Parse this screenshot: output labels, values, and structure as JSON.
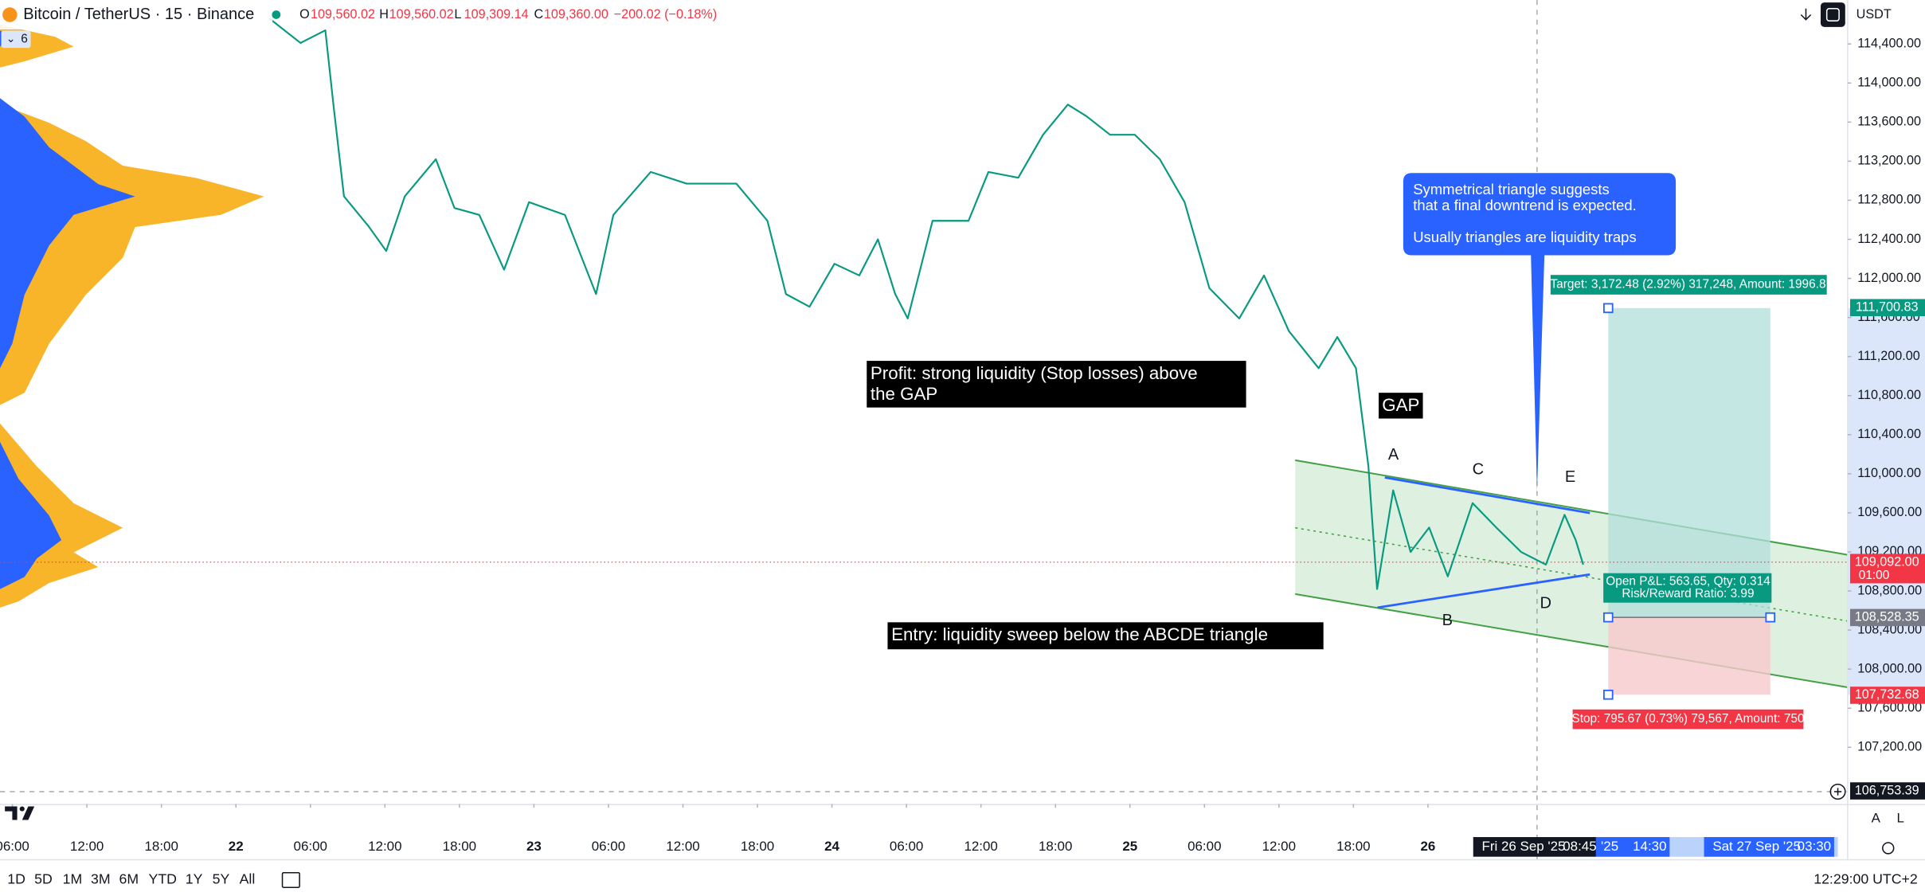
{
  "header": {
    "symbol": "Bitcoin / TetherUS · 15 · Binance",
    "ohlc": [
      {
        "key": "O",
        "value": "109,560.02"
      },
      {
        "key": "H",
        "value": "109,560.02"
      },
      {
        "key": "L",
        "value": "109,309.14"
      },
      {
        "key": "C",
        "value": "109,360.00"
      }
    ],
    "change": "−200.02 (−0.18%)",
    "indicator_count": "6",
    "currency": "USDT"
  },
  "chart_data": {
    "type": "line",
    "color": "#089981",
    "x": [
      26.7,
      29.2,
      31.2,
      31.9,
      32.7,
      34.7,
      36.1,
      37.6,
      40.1,
      41.6,
      43.6,
      45.6,
      47.6,
      50.5,
      53.0,
      54.4,
      57.4,
      60.3,
      64.3,
      66.8,
      68.3,
      70.2,
      72.2,
      74.2,
      75.7,
      77.1,
      78.1,
      80.1,
      83.0,
      84.6,
      87.0,
      89.0,
      91.0,
      92.5,
      94.4,
      96.4,
      98.4,
      100.4,
      102.4,
      104.8,
      106.8,
      108.8,
      111.2,
      112.7,
      114.2,
      115.2,
      115.9,
      117.2,
      118.6,
      120.1,
      121.6,
      123.6,
      125.5,
      127.5,
      129.5,
      131.0,
      131.9,
      132.5
    ],
    "values": [
      114660,
      114410,
      114540,
      113720,
      112840,
      112530,
      112280,
      112840,
      113220,
      112720,
      112650,
      112090,
      112780,
      112650,
      111840,
      112650,
      113090,
      112970,
      112970,
      112590,
      111840,
      111710,
      112150,
      112030,
      112400,
      111840,
      111590,
      112590,
      112590,
      113090,
      113030,
      113470,
      113780,
      113660,
      113470,
      113470,
      113220,
      112780,
      111900,
      111590,
      112030,
      111460,
      111080,
      111400,
      111080,
      110080,
      108820,
      109830,
      109200,
      109450,
      108950,
      109700,
      109450,
      109200,
      109070,
      109580,
      109320,
      109070
    ],
    "xlim": [
      5,
      153.8
    ],
    "xticks": [
      {
        "value": 6,
        "label": "06:00"
      },
      {
        "value": 12,
        "label": "12:00"
      },
      {
        "value": 18,
        "label": "18:00"
      },
      {
        "value": 24,
        "label": "22"
      },
      {
        "value": 30,
        "label": "06:00"
      },
      {
        "value": 36,
        "label": "12:00"
      },
      {
        "value": 42,
        "label": "18:00"
      },
      {
        "value": 48,
        "label": "23"
      },
      {
        "value": 54,
        "label": "06:00"
      },
      {
        "value": 60,
        "label": "12:00"
      },
      {
        "value": 66,
        "label": "18:00"
      },
      {
        "value": 72,
        "label": "24"
      },
      {
        "value": 78,
        "label": "06:00"
      },
      {
        "value": 84,
        "label": "12:00"
      },
      {
        "value": 90,
        "label": "18:00"
      },
      {
        "value": 96,
        "label": "25"
      },
      {
        "value": 102,
        "label": "06:00"
      },
      {
        "value": 108,
        "label": "12:00"
      },
      {
        "value": 114,
        "label": "18:00"
      },
      {
        "value": 120,
        "label": "26"
      }
    ],
    "ylim": [
      106620,
      114850
    ],
    "yticks": [
      {
        "value": 107200,
        "label": "107,200.00"
      },
      {
        "value": 107600,
        "label": "107,600.00"
      },
      {
        "value": 108000,
        "label": "108,000.00"
      },
      {
        "value": 108400,
        "label": "108,400.00"
      },
      {
        "value": 108800,
        "label": "108,800.00"
      },
      {
        "value": 109200,
        "label": "109,200.00"
      },
      {
        "value": 109600,
        "label": "109,600.00"
      },
      {
        "value": 110000,
        "label": "110,000.00"
      },
      {
        "value": 110400,
        "label": "110,400.00"
      },
      {
        "value": 110800,
        "label": "110,800.00"
      },
      {
        "value": 111200,
        "label": "111,200.00"
      },
      {
        "value": 111600,
        "label": "111,600.00"
      },
      {
        "value": 112000,
        "label": "112,000.00"
      },
      {
        "value": 112400,
        "label": "112,400.00"
      },
      {
        "value": 112800,
        "label": "112,800.00"
      },
      {
        "value": 113200,
        "label": "113,200.00"
      },
      {
        "value": 113600,
        "label": "113,600.00"
      },
      {
        "value": 114000,
        "label": "114,000.00"
      },
      {
        "value": 114400,
        "label": "114,400.00"
      }
    ],
    "price_tags": [
      {
        "value": 111700.83,
        "label": "111,700.83",
        "color": "#089981"
      },
      {
        "value": 109092.0,
        "label": "109,092.00",
        "color": "#f23645",
        "countdown": "01:00"
      },
      {
        "value": 108528.35,
        "label": "108,528.35",
        "color": "#787b86"
      },
      {
        "value": 107732.68,
        "label": "107,732.68",
        "color": "#f23645"
      },
      {
        "value": 106753.39,
        "label": "106,753.39",
        "color": "#131722"
      }
    ],
    "crosshair": {
      "date": "Fri 26 Sep '25",
      "time": "08:45"
    },
    "range_labels": [
      {
        "date": "'25",
        "time": "14:30"
      },
      {
        "date": "Sat 27 Sep '25",
        "time": "03:30"
      }
    ],
    "annotations": {
      "profit": [
        "Profit: strong liquidity (Stop losses) above",
        "the GAP"
      ],
      "gap": "GAP",
      "entry": "Entry: liquidity sweep below the ABCDE triangle",
      "callout": [
        "Symmetrical triangle suggests",
        "that a final downtrend is expected.",
        "Usually triangles are liquidity traps"
      ],
      "points": [
        "A",
        "B",
        "C",
        "D",
        "E"
      ],
      "target": "Target: 3,172.48 (2.92%) 317,248, Amount: 1996.8",
      "stop": "Stop: 795.67 (0.73%) 79,567, Amount: 750",
      "pnl": [
        "Open P&L: 563.65, Qty: 0.314",
        "Risk/Reward Ratio: 3.99"
      ]
    }
  },
  "toolbar": {
    "ranges": [
      "1D",
      "5D",
      "1M",
      "3M",
      "6M",
      "YTD",
      "1Y",
      "5Y",
      "All"
    ],
    "clock": "12:29:00 UTC+2",
    "scale_buttons": [
      "A",
      "L"
    ]
  }
}
